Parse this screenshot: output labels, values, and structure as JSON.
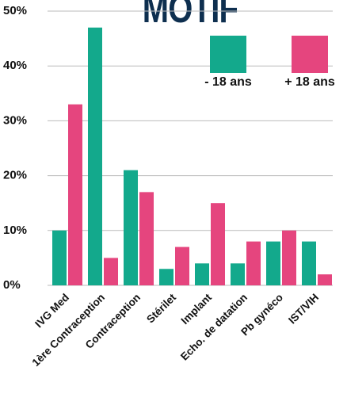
{
  "chart_data": {
    "type": "bar",
    "title": "MOTIF",
    "categories": [
      "IVG Med",
      "1ère Contraception",
      "Contraception",
      "Stérilet",
      "Implant",
      "Echo. de datation",
      "Pb gynéco",
      "IST/VIH"
    ],
    "series": [
      {
        "name": "- 18 ans",
        "color": "#13a98c",
        "values": [
          10,
          47,
          21,
          3,
          4,
          4,
          8,
          8
        ]
      },
      {
        "name": "+ 18 ans",
        "color": "#e5457e",
        "values": [
          33,
          5,
          17,
          7,
          15,
          8,
          10,
          2
        ]
      }
    ],
    "ylim": [
      0,
      50
    ],
    "yticks": [
      {
        "value": 0,
        "label": "0%"
      },
      {
        "value": 10,
        "label": "10%"
      },
      {
        "value": 20,
        "label": "20%"
      },
      {
        "value": 30,
        "label": "30%"
      },
      {
        "value": 40,
        "label": "40%"
      },
      {
        "value": 50,
        "label": "50%"
      }
    ],
    "grid": true
  }
}
